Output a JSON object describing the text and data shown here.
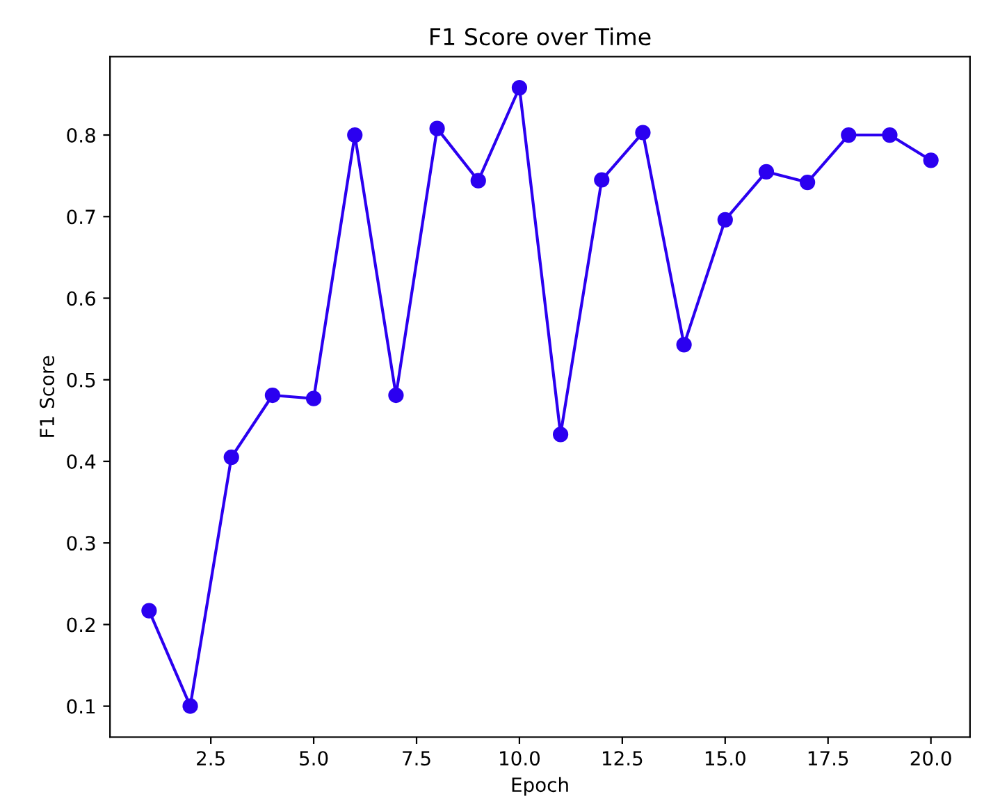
{
  "chart_data": {
    "type": "line",
    "title": "F1 Score over Time",
    "xlabel": "Epoch",
    "ylabel": "F1 Score",
    "x": [
      1,
      2,
      3,
      4,
      5,
      6,
      7,
      8,
      9,
      10,
      11,
      12,
      13,
      14,
      15,
      16,
      17,
      18,
      19,
      20
    ],
    "series": [
      {
        "color": "#2b00f0",
        "values": [
          0.217,
          0.1,
          0.405,
          0.481,
          0.477,
          0.8,
          0.481,
          0.808,
          0.744,
          0.858,
          0.433,
          0.745,
          0.803,
          0.543,
          0.696,
          0.755,
          0.742,
          0.8,
          0.8,
          0.769
        ]
      }
    ],
    "xlim": [
      0.05,
      20.95
    ],
    "ylim": [
      0.062,
      0.896
    ],
    "xticks": [
      {
        "value": 2.5,
        "label": "2.5"
      },
      {
        "value": 5,
        "label": "5.0"
      },
      {
        "value": 7.5,
        "label": "7.5"
      },
      {
        "value": 10,
        "label": "10.0"
      },
      {
        "value": 12.5,
        "label": "12.5"
      },
      {
        "value": 15,
        "label": "15.0"
      },
      {
        "value": 17.5,
        "label": "17.5"
      },
      {
        "value": 20,
        "label": "20.0"
      }
    ],
    "yticks": [
      0.1,
      0.2,
      0.3,
      0.4,
      0.5,
      0.6,
      0.7,
      0.8
    ],
    "marker": "circle",
    "line_style": "solid",
    "grid": false,
    "legend": false
  }
}
